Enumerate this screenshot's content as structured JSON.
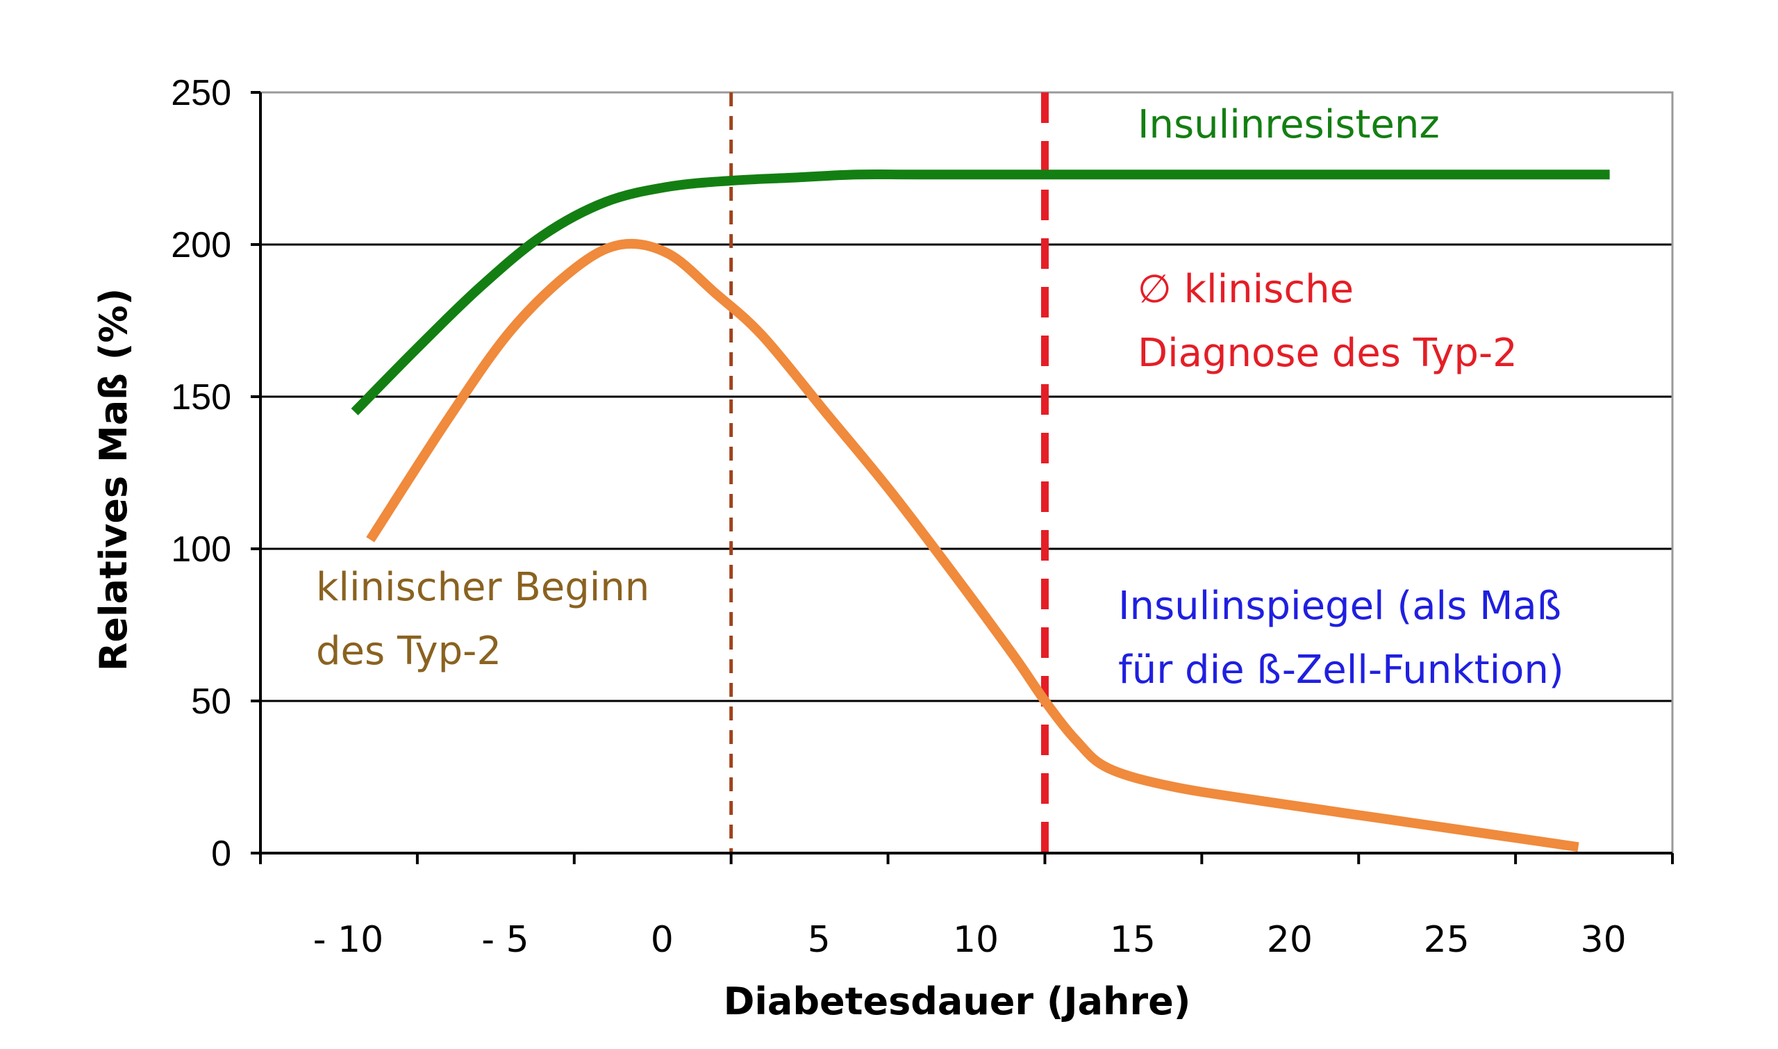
{
  "chart_data": {
    "type": "line",
    "xlabel": "Diabetesdauer (Jahre)",
    "ylabel": "Relatives Maß (%)",
    "xlim": [
      -15,
      30
    ],
    "ylim": [
      0,
      250
    ],
    "y_ticks": [
      "0",
      "50",
      "100",
      "150",
      "200",
      "250"
    ],
    "y_tick_values": [
      0,
      50,
      100,
      150,
      200,
      250
    ],
    "x_ticks": [
      "- 10",
      "- 5",
      "0",
      "5",
      "10",
      "15",
      "20",
      "25",
      "30"
    ],
    "x_tick_values": [
      -10,
      -5,
      0,
      5,
      10,
      15,
      20,
      25,
      30
    ],
    "grid": true,
    "series": [
      {
        "name": "Insulinresistenz",
        "color": "#137f12",
        "x": [
          -12,
          -10,
          -8,
          -6,
          -4,
          -2,
          0,
          2,
          4,
          6,
          10,
          15,
          20,
          25,
          28
        ],
        "y": [
          145,
          166,
          186,
          203,
          214,
          219,
          221,
          222,
          223,
          223,
          223,
          223,
          223,
          223,
          223
        ]
      },
      {
        "name": "Insulinspiegel (als Maß für die ß-Zell-Funktion)",
        "color": "#f08a3c",
        "x": [
          -11.5,
          -9,
          -7,
          -5,
          -3.5,
          -2,
          -0.5,
          1,
          3,
          5,
          7,
          9,
          10,
          11,
          12,
          14,
          17,
          21,
          25,
          27
        ],
        "y": [
          103,
          143,
          172,
          192,
          200,
          197,
          184,
          170,
          145,
          120,
          93,
          65,
          50,
          37,
          28,
          22,
          17,
          11,
          5,
          2
        ]
      }
    ],
    "vlines": [
      {
        "x": 0,
        "color": "#a0431c",
        "style": "dashed"
      },
      {
        "x": 10,
        "color": "#e41e26",
        "style": "dashed"
      }
    ],
    "annotations": [
      {
        "lines": [
          "Insulinresistenz"
        ],
        "color": "#137f12"
      },
      {
        "lines": [
          "∅ klinische",
          "Diagnose des Typ-2"
        ],
        "color": "#e41e26"
      },
      {
        "lines": [
          "klinischer Beginn",
          "des Typ-2"
        ],
        "color": "#8a6220"
      },
      {
        "lines": [
          "Insulinspiegel (als Maß",
          "für die ß-Zell-Funktion)"
        ],
        "color": "#1f1fe0"
      }
    ]
  }
}
